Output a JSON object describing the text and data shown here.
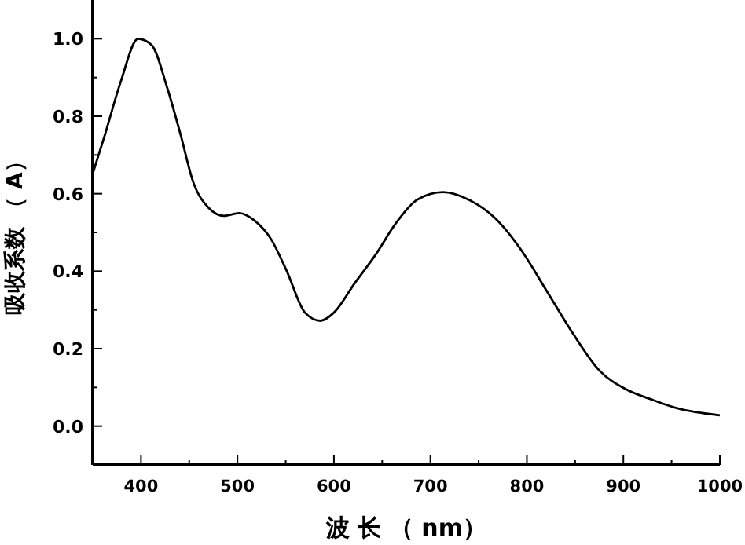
{
  "chart_data": {
    "type": "line",
    "xlabel": "波 长 （ nm）",
    "ylabel": "吸收系数 （ A）",
    "xlim": [
      350,
      1000
    ],
    "ylim": [
      -0.1,
      1.1
    ],
    "xticks": [
      400,
      {
        "value": 450,
        "label": null
      },
      500,
      {
        "value": 550,
        "label": null
      },
      600,
      {
        "value": 650,
        "label": null
      },
      700,
      {
        "value": 750,
        "label": null
      },
      800,
      {
        "value": 850,
        "label": null
      },
      900,
      {
        "value": 950,
        "label": null
      },
      1000
    ],
    "yticks": [
      {
        "value": 0,
        "label": "0.0"
      },
      {
        "value": 0.1,
        "label": null
      },
      0.2,
      {
        "value": 0.3,
        "label": null
      },
      0.4,
      {
        "value": 0.5,
        "label": null
      },
      0.6,
      {
        "value": 0.7,
        "label": null
      },
      0.8,
      {
        "value": 0.9,
        "label": null
      },
      {
        "value": 1,
        "label": "1.0"
      }
    ],
    "grid": false,
    "marker": "none",
    "line_style": "solid",
    "series": [
      {
        "color": "#000000",
        "x": [
          350,
          362,
          379,
          397,
          411,
          427,
          441,
          454,
          470,
          486,
          502,
          518,
          535,
          551,
          570,
          586,
          600,
          621,
          643,
          664,
          686,
          713,
          740,
          767,
          794,
          821,
          848,
          875,
          902,
          929,
          956,
          1000
        ],
        "values": [
          0.652,
          0.747,
          0.889,
          1.0,
          0.984,
          0.875,
          0.753,
          0.631,
          0.564,
          0.543,
          0.55,
          0.53,
          0.482,
          0.401,
          0.293,
          0.272,
          0.293,
          0.367,
          0.442,
          0.523,
          0.584,
          0.604,
          0.584,
          0.537,
          0.455,
          0.347,
          0.238,
          0.144,
          0.096,
          0.069,
          0.046,
          0.028
        ]
      }
    ]
  }
}
